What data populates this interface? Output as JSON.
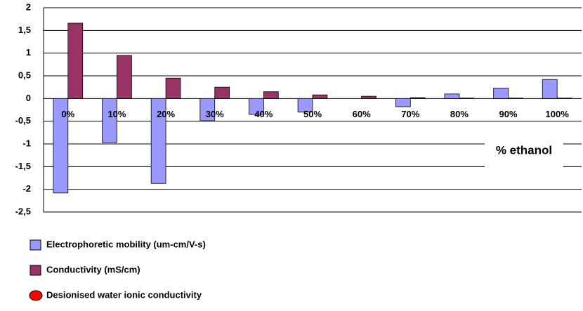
{
  "chart_data": {
    "type": "bar",
    "x_label": "% ethanol",
    "categories": [
      "0%",
      "10%",
      "20%",
      "30%",
      "40%",
      "50%",
      "60%",
      "70%",
      "80%",
      "90%",
      "100%"
    ],
    "series": [
      {
        "name": "Electrophoretic mobility (um-cm/V-s)",
        "color": "#9999ff",
        "marker": "square",
        "values": [
          -2.08,
          -0.97,
          -1.87,
          -0.49,
          -0.35,
          -0.3,
          0,
          -0.18,
          0.1,
          0.23,
          0.42
        ]
      },
      {
        "name": "Conductivity (mS/cm)",
        "color": "#993366",
        "marker": "square",
        "values": [
          1.66,
          0.95,
          0.45,
          0.25,
          0.15,
          0.08,
          0.05,
          0.02,
          0.01,
          0.01,
          0.01
        ]
      },
      {
        "name": "Desionised water ionic conductivity",
        "color": "#ff0000",
        "marker": "circle",
        "values": [
          null,
          null,
          null,
          null,
          null,
          null,
          null,
          null,
          null,
          null,
          null
        ]
      }
    ],
    "ylim": [
      -2.5,
      2
    ],
    "yticks": [
      {
        "value": -2.5,
        "label": "-2,5"
      },
      -2,
      {
        "value": -1.5,
        "label": "-1,5"
      },
      -1,
      {
        "value": -0.5,
        "label": "-0,5"
      },
      0,
      {
        "value": 0.5,
        "label": "0,5"
      },
      1,
      {
        "value": 1.5,
        "label": "1,5"
      },
      2
    ],
    "grid": true
  }
}
